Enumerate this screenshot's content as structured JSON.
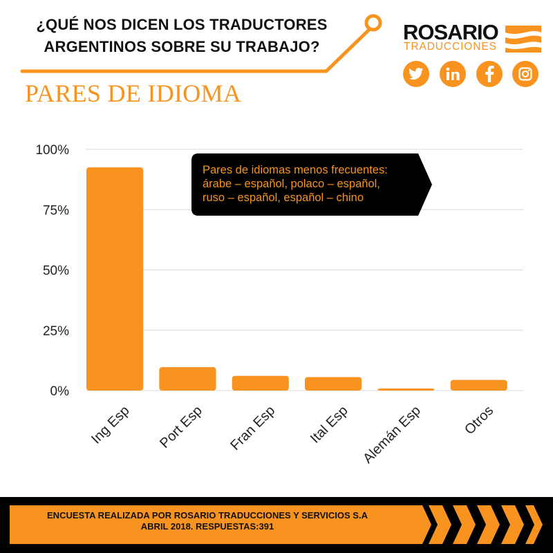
{
  "header": {
    "title_line1": "¿QUÉ NOS DICEN LOS TRADUCTORES",
    "title_line2": "ARGENTINOS SOBRE SU TRABAJO?"
  },
  "logo": {
    "name": "ROSARIO",
    "tagline": "TRADUCCIONES"
  },
  "social": [
    "twitter-icon",
    "linkedin-icon",
    "facebook-icon",
    "instagram-icon"
  ],
  "section_title": "PARES DE IDIOMA",
  "callout": {
    "line1": "Pares de idiomas menos frecuentes:",
    "line2": "árabe – español, polaco – español,",
    "line3": "ruso – español, español – chino"
  },
  "footer": {
    "line1": "ENCUESTA  REALIZADA POR ROSARIO TRADUCCIONES Y SERVICIOS S.A",
    "line2": "ABRIL 2018. RESPUESTAS:391"
  },
  "colors": {
    "accent": "#f7931e",
    "text": "#111111",
    "footer_bg": "#000000",
    "grid": "#d9d9d9"
  },
  "chart_data": {
    "type": "bar",
    "title": "",
    "xlabel": "",
    "ylabel": "",
    "categories": [
      "Ing Esp",
      "Port Esp",
      "Fran Esp",
      "Ital Esp",
      "Alemán Esp",
      "Otros"
    ],
    "values": [
      92.5,
      9.7,
      6.1,
      5.6,
      0.7,
      4.4
    ],
    "ylim": [
      0,
      100
    ],
    "yticks": [
      0,
      25,
      50,
      75,
      100
    ],
    "ytick_labels": [
      "0%",
      "25%",
      "50%",
      "75%",
      "100%"
    ],
    "grid": true,
    "legend": "none"
  }
}
